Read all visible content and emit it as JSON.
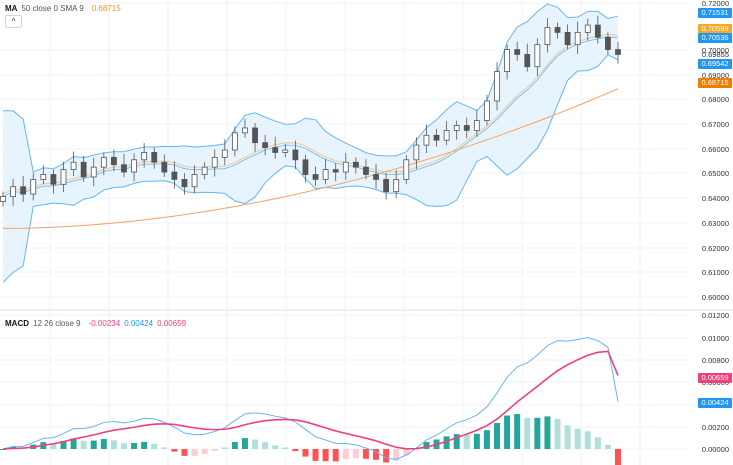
{
  "price_pane": {
    "legend": {
      "name": "MA",
      "params": "50 close 0 SMA 9",
      "value": "0.68715",
      "value_color": "#f7931a"
    },
    "collapse_icon": "^",
    "y_ticks": [
      "0.72000",
      "0.70000",
      "0.69000",
      "0.68000",
      "0.67000",
      "0.66000",
      "0.65000",
      "0.64000",
      "0.63000",
      "0.62000",
      "0.61000",
      "0.60000"
    ],
    "last_value": "0.69855",
    "price_tags": [
      {
        "value": "0.71531",
        "color": "#2196f3"
      },
      {
        "value": "0.70599",
        "color": "#f9a825"
      },
      {
        "value": "0.70536",
        "color": "#2196f3"
      },
      {
        "value": "0.69542",
        "color": "#2196f3"
      },
      {
        "value": "0.68715",
        "color": "#ef7d00"
      }
    ]
  },
  "macd_pane": {
    "legend": {
      "name": "MACD",
      "params": "12 26 close 9",
      "hist": "-0.00234",
      "macd": "0.00424",
      "signal": "0.00659"
    },
    "y_ticks": [
      "0.01200",
      "0.01000",
      "0.00800",
      "0.00600",
      "0.00200",
      "0.00000"
    ],
    "tags": [
      {
        "value": "0.00659",
        "color": "#f23f7a"
      },
      {
        "value": "0.00424",
        "color": "#2196f3"
      }
    ]
  },
  "colors": {
    "band_fill": "#e3f2fd",
    "band_line": "#64b5f6",
    "ma_fast": "#f0c896",
    "ma_slow": "#f4a261",
    "macd_line": "#64b5f6",
    "signal_line": "#f23f7a",
    "hist_up_strong": "#26a69a",
    "hist_up_weak": "#b2dfdb",
    "hist_down_strong": "#ff5252",
    "hist_down_weak": "#ffcdd2"
  },
  "chart_data": [
    {
      "type": "candlestick",
      "title": "MA 50 close 0 SMA 9",
      "ylim": [
        0.595,
        0.722
      ],
      "y_ticks": [
        0.6,
        0.61,
        0.62,
        0.63,
        0.64,
        0.65,
        0.66,
        0.67,
        0.68,
        0.69,
        0.7,
        0.72
      ],
      "overlays": [
        "Bollinger Bands",
        "SMA fast",
        "MA 50"
      ],
      "last_close": 0.69855,
      "markers": {
        "upper_band": 0.71531,
        "basis": 0.70536,
        "lower_band": 0.69542,
        "ma_fast": 0.70599,
        "ma50": 0.68715
      },
      "close_series_approx": [
        0.641,
        0.645,
        0.642,
        0.648,
        0.65,
        0.646,
        0.652,
        0.655,
        0.649,
        0.653,
        0.657,
        0.654,
        0.651,
        0.656,
        0.659,
        0.655,
        0.651,
        0.648,
        0.645,
        0.65,
        0.653,
        0.657,
        0.66,
        0.667,
        0.669,
        0.663,
        0.661,
        0.659,
        0.66,
        0.656,
        0.65,
        0.648,
        0.652,
        0.651,
        0.655,
        0.653,
        0.65,
        0.648,
        0.643,
        0.648,
        0.656,
        0.662,
        0.666,
        0.664,
        0.668,
        0.67,
        0.668,
        0.672,
        0.68,
        0.692,
        0.701,
        0.699,
        0.694,
        0.703,
        0.71,
        0.708,
        0.703,
        0.708,
        0.711,
        0.706,
        0.701,
        0.699
      ]
    },
    {
      "type": "bar+line",
      "title": "MACD 12 26 close 9",
      "ylim": [
        -0.0006,
        0.0122
      ],
      "y_ticks": [
        0.0,
        0.002,
        0.006,
        0.008,
        0.01,
        0.012
      ],
      "series": [
        {
          "name": "MACD",
          "last": 0.00424
        },
        {
          "name": "Signal",
          "last": 0.00659
        },
        {
          "name": "Histogram",
          "last": -0.00234
        }
      ]
    }
  ]
}
